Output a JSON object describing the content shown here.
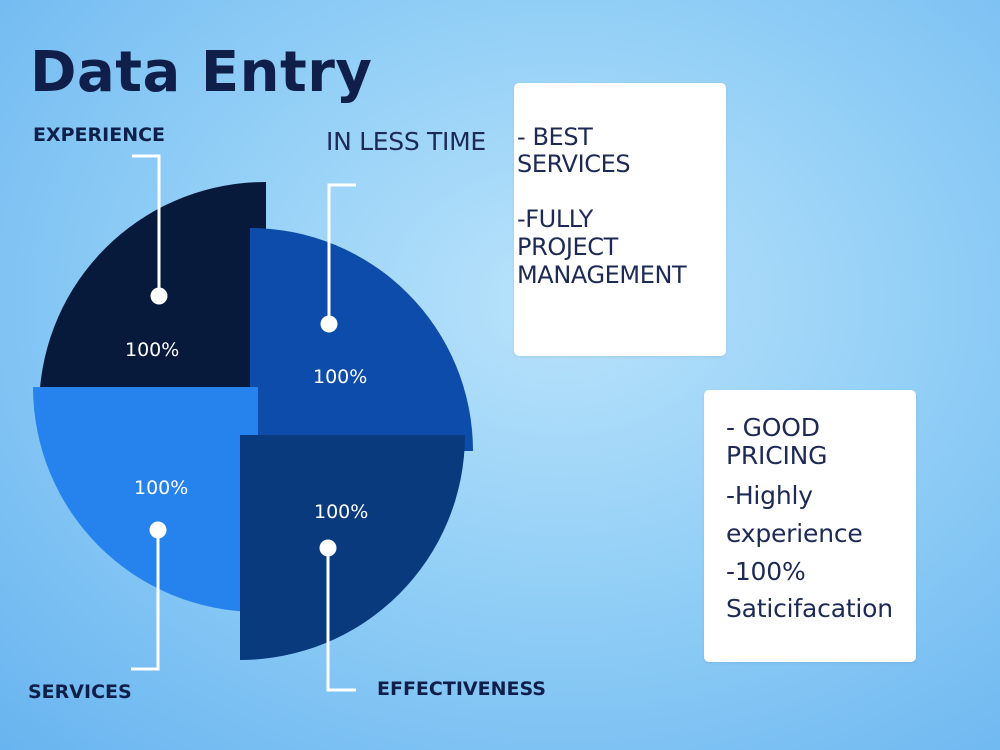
{
  "title": "Data Entry",
  "tagline": "IN LESS TIME",
  "segments": [
    {
      "label": "EXPERIENCE",
      "value": "100%",
      "color": "#081a3c"
    },
    {
      "label": "EFFECTIVENESS",
      "value": "100%",
      "color": "#0a3a7e"
    },
    {
      "label": "SERVICES",
      "value": "100%",
      "color": "#2683ee"
    },
    {
      "label": "IN LESS TIME",
      "value": "100%",
      "color": "#0d4caa"
    }
  ],
  "card_top": {
    "lines": [
      "- BEST",
      "SERVICES",
      "-FULLY",
      "PROJECT",
      "MANAGEMENT"
    ]
  },
  "card_bottom": {
    "lines": [
      "- GOOD",
      "PRICING",
      "-Highly",
      "experience",
      "-100%",
      "Saticifacation"
    ]
  }
}
